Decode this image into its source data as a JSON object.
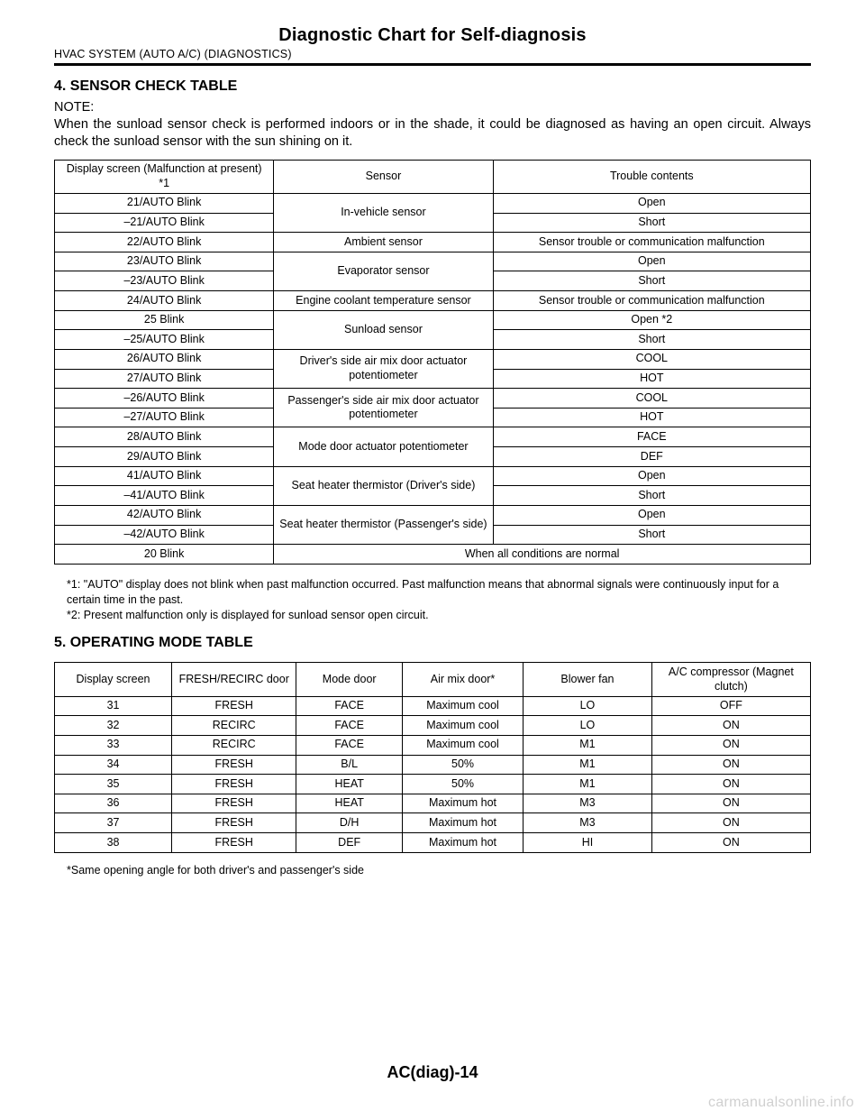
{
  "header": {
    "title": "Diagnostic Chart for Self-diagnosis",
    "subtitle": "HVAC SYSTEM (AUTO A/C) (DIAGNOSTICS)"
  },
  "section4": {
    "heading": "4.  SENSOR CHECK TABLE",
    "note_label": "NOTE:",
    "note_body": "When the sunload sensor check is performed indoors or in the shade, it could be diagnosed as having an open circuit. Always check the sunload sensor with the sun shining on it.",
    "columns": [
      "Display screen (Malfunction at present) *1",
      "Sensor",
      "Trouble contents"
    ],
    "rows": {
      "r1_c1": "21/AUTO Blink",
      "r1_c3": "Open",
      "r2_c1": "–21/AUTO Blink",
      "r2_c3": "Short",
      "sensor_12": "In-vehicle sensor",
      "r3_c1": "22/AUTO Blink",
      "r3_c2": "Ambient sensor",
      "r3_c3": "Sensor trouble or communication malfunction",
      "r4_c1": "23/AUTO Blink",
      "r4_c3": "Open",
      "r5_c1": "–23/AUTO Blink",
      "r5_c3": "Short",
      "sensor_45": "Evaporator sensor",
      "r6_c1": "24/AUTO Blink",
      "r6_c2": "Engine coolant temperature sensor",
      "r6_c3": "Sensor trouble or communication malfunction",
      "r7_c1": "25 Blink",
      "r7_c3": "Open *2",
      "r8_c1": "–25/AUTO Blink",
      "r8_c3": "Short",
      "sensor_78": "Sunload sensor",
      "r9_c1": "26/AUTO Blink",
      "r9_c3": "COOL",
      "r10_c1": "27/AUTO Blink",
      "r10_c3": "HOT",
      "sensor_910": "Driver's side air mix door actuator potentiometer",
      "r11_c1": "–26/AUTO Blink",
      "r11_c3": "COOL",
      "r12_c1": "–27/AUTO Blink",
      "r12_c3": "HOT",
      "sensor_1112": "Passenger's side air mix door actuator potentiometer",
      "r13_c1": "28/AUTO Blink",
      "r13_c3": "FACE",
      "r14_c1": "29/AUTO Blink",
      "r14_c3": "DEF",
      "sensor_1314": "Mode door actuator potentiometer",
      "r15_c1": "41/AUTO Blink",
      "r15_c3": "Open",
      "r16_c1": "–41/AUTO Blink",
      "r16_c3": "Short",
      "sensor_1516": "Seat heater thermistor (Driver's side)",
      "r17_c1": "42/AUTO Blink",
      "r17_c3": "Open",
      "r18_c1": "–42/AUTO Blink",
      "r18_c3": "Short",
      "sensor_1718": "Seat heater thermistor (Passenger's side)",
      "r19_c1": "20 Blink",
      "r19_c23": "When all conditions are normal"
    },
    "footnote": "*1: \"AUTO\" display does not blink when past malfunction occurred. Past malfunction means that abnormal signals were continuously input for a certain time in the past.\n*2: Present malfunction only is displayed for sunload sensor open circuit."
  },
  "section5": {
    "heading": "5.  OPERATING MODE TABLE",
    "columns": [
      "Display screen",
      "FRESH/RECIRC door",
      "Mode door",
      "Air mix door*",
      "Blower fan",
      "A/C compressor (Magnet clutch)"
    ],
    "rows": [
      [
        "31",
        "FRESH",
        "FACE",
        "Maximum cool",
        "LO",
        "OFF"
      ],
      [
        "32",
        "RECIRC",
        "FACE",
        "Maximum cool",
        "LO",
        "ON"
      ],
      [
        "33",
        "RECIRC",
        "FACE",
        "Maximum cool",
        "M1",
        "ON"
      ],
      [
        "34",
        "FRESH",
        "B/L",
        "50%",
        "M1",
        "ON"
      ],
      [
        "35",
        "FRESH",
        "HEAT",
        "50%",
        "M1",
        "ON"
      ],
      [
        "36",
        "FRESH",
        "HEAT",
        "Maximum hot",
        "M3",
        "ON"
      ],
      [
        "37",
        "FRESH",
        "D/H",
        "Maximum hot",
        "M3",
        "ON"
      ],
      [
        "38",
        "FRESH",
        "DEF",
        "Maximum hot",
        "HI",
        "ON"
      ]
    ],
    "footnote": "*Same opening angle for both driver's and passenger's side"
  },
  "footer": {
    "page": "AC(diag)-14",
    "watermark": "carmanualsonline.info"
  }
}
